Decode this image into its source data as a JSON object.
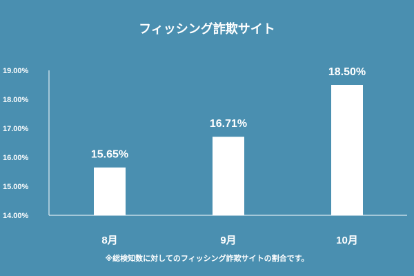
{
  "chart_data": {
    "type": "bar",
    "title": "フィッシング詐欺サイト",
    "categories": [
      "8月",
      "9月",
      "10月"
    ],
    "values": [
      15.65,
      16.71,
      18.5
    ],
    "value_labels": [
      "15.65%",
      "16.71%",
      "18.50%"
    ],
    "ylim": [
      14,
      19
    ],
    "yticks": [
      "14.00%",
      "15.00%",
      "16.00%",
      "17.00%",
      "18.00%",
      "19.00%"
    ],
    "xlabel": "",
    "ylabel": "",
    "grid": false,
    "legend": "none",
    "footnote": "※総検知数に対してのフィッシング詐欺サイトの割合です。"
  },
  "colors": {
    "background": "#4a8fb0",
    "bar": "#ffffff",
    "axis": "#ffffff",
    "text": "#ffffff"
  }
}
